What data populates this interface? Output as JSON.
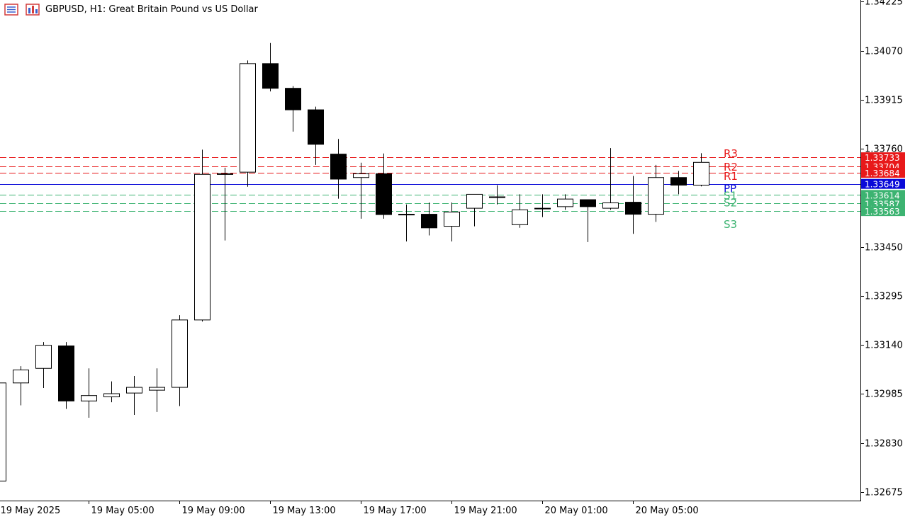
{
  "window": {
    "title": "GBPUSD, H1:  Great Britain Pound vs US Dollar",
    "icons": [
      "chart-window-icon",
      "chart-style-icon"
    ]
  },
  "colors": {
    "background": "#ffffff",
    "candle_up_fill": "#ffffff",
    "candle_down_fill": "#000000",
    "candle_outline": "#000000",
    "resistance": "#e8191a",
    "pivot": "#0a0ad8",
    "support": "#3cb371",
    "axis": "#000000"
  },
  "chart_data": {
    "type": "candlestick",
    "symbol": "GBPUSD",
    "timeframe": "H1",
    "ylim": [
      1.3259,
      1.3423
    ],
    "y_ticks": [
      "1.34225",
      "1.34070",
      "1.33915",
      "1.33760",
      "1.33450",
      "1.33295",
      "1.33140",
      "1.32985",
      "1.32830",
      "1.32675"
    ],
    "x_tick_labels": [
      "19 May 2025",
      "19 May 05:00",
      "19 May 09:00",
      "19 May 13:00",
      "19 May 17:00",
      "19 May 21:00",
      "20 May 01:00",
      "20 May 05:00"
    ],
    "candles": [
      {
        "o": 1.3271,
        "h": 1.3302,
        "l": 1.3271,
        "c": 1.3302
      },
      {
        "o": 1.3302,
        "h": 1.33073,
        "l": 1.32949,
        "c": 1.33061
      },
      {
        "o": 1.33066,
        "h": 1.33149,
        "l": 1.33004,
        "c": 1.33139
      },
      {
        "o": 1.33137,
        "h": 1.33149,
        "l": 1.32938,
        "c": 1.32963
      },
      {
        "o": 1.32963,
        "h": 1.33066,
        "l": 1.3291,
        "c": 1.3298
      },
      {
        "o": 1.32976,
        "h": 1.33025,
        "l": 1.32959,
        "c": 1.32986
      },
      {
        "o": 1.32988,
        "h": 1.33042,
        "l": 1.32919,
        "c": 1.33006
      },
      {
        "o": 1.32997,
        "h": 1.33066,
        "l": 1.32928,
        "c": 1.33006
      },
      {
        "o": 1.33006,
        "h": 1.33234,
        "l": 1.32947,
        "c": 1.33219
      },
      {
        "o": 1.33219,
        "h": 1.33757,
        "l": 1.33214,
        "c": 1.33679
      },
      {
        "o": 1.33681,
        "h": 1.337,
        "l": 1.3347,
        "c": 1.33681
      },
      {
        "o": 1.33686,
        "h": 1.34039,
        "l": 1.3364,
        "c": 1.34029
      },
      {
        "o": 1.34029,
        "h": 1.34094,
        "l": 1.33941,
        "c": 1.33951
      },
      {
        "o": 1.33951,
        "h": 1.33958,
        "l": 1.33814,
        "c": 1.33883
      },
      {
        "o": 1.33883,
        "h": 1.33893,
        "l": 1.33709,
        "c": 1.33774
      },
      {
        "o": 1.33743,
        "h": 1.33791,
        "l": 1.33602,
        "c": 1.33664
      },
      {
        "o": 1.33669,
        "h": 1.33716,
        "l": 1.33539,
        "c": 1.33681
      },
      {
        "o": 1.33681,
        "h": 1.33745,
        "l": 1.33539,
        "c": 1.33552
      },
      {
        "o": 1.33553,
        "h": 1.33584,
        "l": 1.33467,
        "c": 1.33553
      },
      {
        "o": 1.33553,
        "h": 1.3359,
        "l": 1.33486,
        "c": 1.3351
      },
      {
        "o": 1.33515,
        "h": 1.3359,
        "l": 1.33467,
        "c": 1.3356
      },
      {
        "o": 1.33572,
        "h": 1.33616,
        "l": 1.33515,
        "c": 1.33616
      },
      {
        "o": 1.33608,
        "h": 1.33645,
        "l": 1.33584,
        "c": 1.33608
      },
      {
        "o": 1.3352,
        "h": 1.33616,
        "l": 1.3351,
        "c": 1.33567
      },
      {
        "o": 1.33572,
        "h": 1.33616,
        "l": 1.33544,
        "c": 1.33572
      },
      {
        "o": 1.33577,
        "h": 1.33616,
        "l": 1.33567,
        "c": 1.33601
      },
      {
        "o": 1.33599,
        "h": 1.33599,
        "l": 1.33465,
        "c": 1.33577
      },
      {
        "o": 1.33572,
        "h": 1.33762,
        "l": 1.33567,
        "c": 1.33589
      },
      {
        "o": 1.33591,
        "h": 1.33674,
        "l": 1.33491,
        "c": 1.33553
      },
      {
        "o": 1.33553,
        "h": 1.33709,
        "l": 1.33529,
        "c": 1.33669
      },
      {
        "o": 1.33669,
        "h": 1.3369,
        "l": 1.33616,
        "c": 1.33645
      },
      {
        "o": 1.33645,
        "h": 1.33746,
        "l": 1.33641,
        "c": 1.33717
      }
    ],
    "levels": [
      {
        "name": "R3",
        "value": 1.33733,
        "label": "1.33733",
        "color": "#e8191a"
      },
      {
        "name": "R2",
        "value": 1.33704,
        "label": "1.33704",
        "color": "#e8191a"
      },
      {
        "name": "R1",
        "value": 1.33684,
        "label": "1.33684",
        "color": "#e8191a"
      },
      {
        "name": "PP",
        "value": 1.33649,
        "label": "1.33649",
        "color": "#0a0ad8"
      },
      {
        "name": "S1",
        "value": 1.33614,
        "label": "1.33614",
        "color": "#3cb371"
      },
      {
        "name": "S2",
        "value": 1.33587,
        "label": "1.33587",
        "color": "#3cb371"
      },
      {
        "name": "S3",
        "value": 1.33563,
        "label": "1.33563",
        "color": "#3cb371"
      }
    ]
  }
}
